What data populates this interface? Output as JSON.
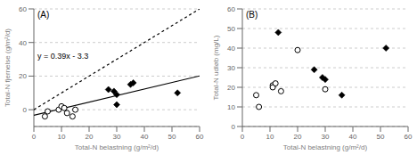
{
  "chart_data": [
    {
      "type": "scatter",
      "title": "(A)",
      "xlabel": "Total-N belastning (g/m²/d)",
      "ylabel": "Total-N fjernelse (g/m²/d)",
      "xlim": [
        0,
        60
      ],
      "ylim": [
        -10,
        60
      ],
      "xticks": [
        0,
        10,
        20,
        30,
        40,
        50,
        60
      ],
      "yticks": [
        0,
        20,
        40,
        60
      ],
      "grid": true,
      "annotations": [
        "y = 0.39x - 3.3"
      ],
      "series": [
        {
          "type": "line",
          "line_style": "dotted",
          "color": "#000000",
          "x": [
            0,
            60
          ],
          "values": [
            0,
            60
          ]
        },
        {
          "type": "line",
          "line_style": "solid",
          "color": "#000000",
          "x": [
            0,
            60
          ],
          "values": [
            -3.3,
            20.1
          ]
        },
        {
          "type": "scatter",
          "marker": "diamond",
          "color": "#000000",
          "x": [
            27,
            29,
            30,
            30,
            35,
            36,
            52
          ],
          "values": [
            12,
            11,
            9,
            3,
            15,
            16,
            10
          ]
        },
        {
          "type": "scatter",
          "marker": "open_circle",
          "color": "#000000",
          "x": [
            4,
            5,
            9,
            10,
            11,
            12,
            14,
            15
          ],
          "values": [
            -4,
            -1,
            0,
            2,
            1,
            -2,
            -4,
            0
          ]
        }
      ]
    },
    {
      "type": "scatter",
      "title": "(B)",
      "xlabel": "Total-N belastning (g/m²/d)",
      "ylabel": "Total-N udløb (mg/L)",
      "xlim": [
        0,
        60
      ],
      "ylim": [
        0,
        60
      ],
      "xticks": [
        0,
        10,
        20,
        30,
        40,
        50,
        60
      ],
      "yticks": [
        0,
        10,
        20,
        30,
        40,
        50,
        60
      ],
      "grid": true,
      "series": [
        {
          "type": "scatter",
          "marker": "diamond",
          "color": "#000000",
          "x": [
            13,
            26,
            29,
            30,
            36,
            52
          ],
          "values": [
            48,
            29,
            25,
            24,
            16,
            40
          ]
        },
        {
          "type": "scatter",
          "marker": "open_circle",
          "color": "#000000",
          "x": [
            5,
            6,
            11,
            11,
            12,
            14,
            20,
            30
          ],
          "values": [
            16,
            10,
            21,
            20,
            22,
            18,
            39,
            19
          ]
        }
      ]
    }
  ]
}
